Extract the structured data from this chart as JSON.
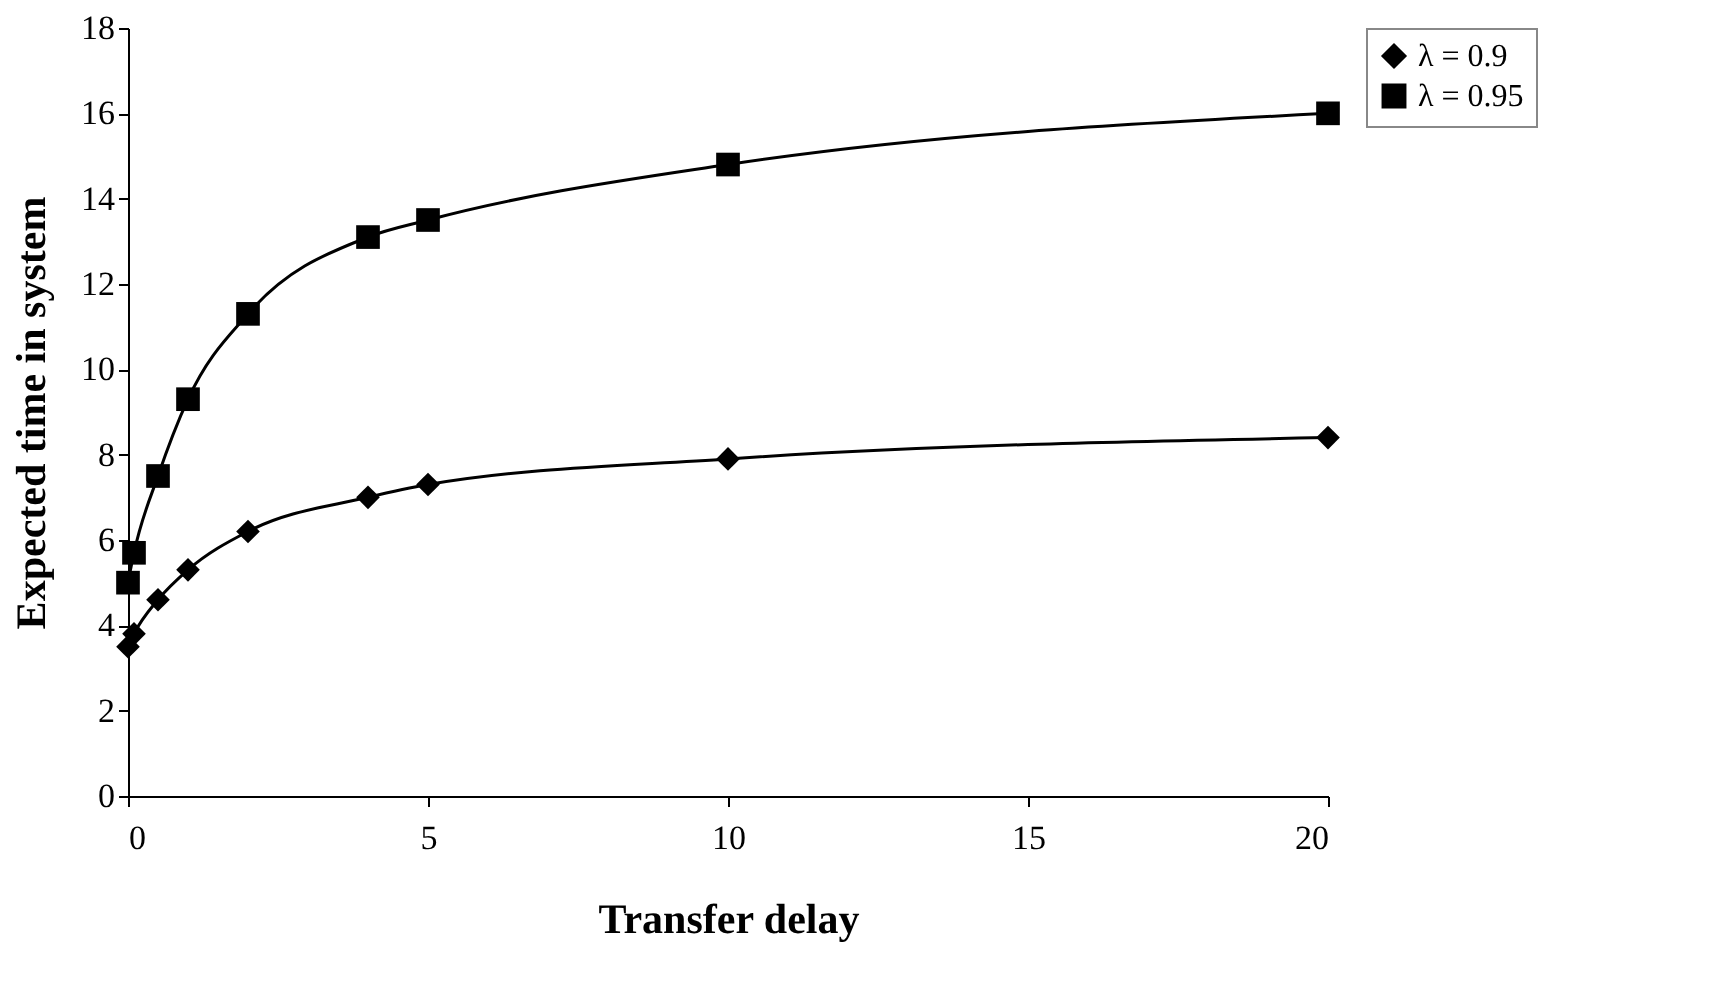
{
  "chart_data": {
    "type": "line",
    "xlabel": "Transfer delay",
    "ylabel": "Expected time in system",
    "xlim": [
      0,
      20
    ],
    "xticks": [
      0,
      5,
      10,
      15,
      20
    ],
    "ylim": [
      0,
      18
    ],
    "yticks": [
      0,
      2,
      4,
      6,
      8,
      10,
      12,
      14,
      16,
      18
    ],
    "grid": false,
    "legend": "right",
    "series": [
      {
        "name": "λ = 0.9",
        "color": "#000000",
        "marker": "diamond",
        "x": [
          0,
          0.1,
          0.5,
          1,
          2,
          4,
          5,
          10,
          20
        ],
        "values": [
          3.5,
          3.8,
          4.6,
          5.3,
          6.2,
          7.0,
          7.3,
          7.9,
          8.4
        ]
      },
      {
        "name": "λ = 0.95",
        "color": "#000000",
        "marker": "square",
        "x": [
          0,
          0.1,
          0.5,
          1,
          2,
          4,
          5,
          10,
          20
        ],
        "values": [
          5.0,
          5.7,
          7.5,
          9.3,
          11.3,
          13.1,
          13.5,
          14.8,
          16.0
        ]
      }
    ]
  }
}
